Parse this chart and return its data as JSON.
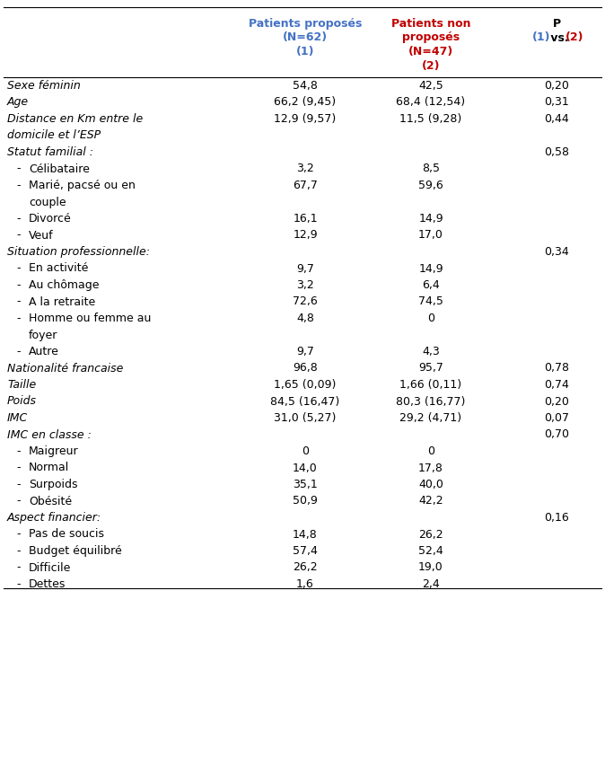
{
  "col1_header": [
    "Patients proposés",
    "(N=62)",
    "(1)"
  ],
  "col2_header": [
    "Patients non",
    "proposés",
    "(N=47)",
    "(2)"
  ],
  "col3_header_p": "P",
  "col3_header_12": [
    "(1)",
    " vs. ",
    "(2)"
  ],
  "col1_color": "#4472C4",
  "col2_color": "#C00000",
  "rows": [
    {
      "label": "Sexe féminin",
      "indent": 0,
      "italic": true,
      "col1": "54,8",
      "col2": "42,5",
      "col3": "0,20"
    },
    {
      "label": "Age",
      "indent": 0,
      "italic": true,
      "col1": "66,2 (9,45)",
      "col2": "68,4 (12,54)",
      "col3": "0,31"
    },
    {
      "label": "Distance en Km entre le",
      "indent": 0,
      "italic": true,
      "col1": "12,9 (9,57)",
      "col2": "11,5 (9,28)",
      "col3": "0,44"
    },
    {
      "label": "domicile et l’ESP",
      "indent": 0,
      "italic": true,
      "col1": "",
      "col2": "",
      "col3": ""
    },
    {
      "label": "Statut familial :",
      "indent": 0,
      "italic": true,
      "col1": "",
      "col2": "",
      "col3": "0,58"
    },
    {
      "label": "Célibataire",
      "indent": 1,
      "italic": false,
      "col1": "3,2",
      "col2": "8,5",
      "col3": ""
    },
    {
      "label": "Marié, pacsé ou en",
      "indent": 1,
      "italic": false,
      "col1": "67,7",
      "col2": "59,6",
      "col3": ""
    },
    {
      "label": "couple",
      "indent": 2,
      "italic": false,
      "col1": "",
      "col2": "",
      "col3": ""
    },
    {
      "label": "Divorcé",
      "indent": 1,
      "italic": false,
      "col1": "16,1",
      "col2": "14,9",
      "col3": ""
    },
    {
      "label": "Veuf",
      "indent": 1,
      "italic": false,
      "col1": "12,9",
      "col2": "17,0",
      "col3": ""
    },
    {
      "label": "Situation professionnelle:",
      "indent": 0,
      "italic": true,
      "col1": "",
      "col2": "",
      "col3": "0,34"
    },
    {
      "label": "En activité",
      "indent": 1,
      "italic": false,
      "col1": "9,7",
      "col2": "14,9",
      "col3": ""
    },
    {
      "label": "Au chômage",
      "indent": 1,
      "italic": false,
      "col1": "3,2",
      "col2": "6,4",
      "col3": ""
    },
    {
      "label": "A la retraite",
      "indent": 1,
      "italic": false,
      "col1": "72,6",
      "col2": "74,5",
      "col3": ""
    },
    {
      "label": "Homme ou femme au",
      "indent": 1,
      "italic": false,
      "col1": "4,8",
      "col2": "0",
      "col3": ""
    },
    {
      "label": "foyer",
      "indent": 2,
      "italic": false,
      "col1": "",
      "col2": "",
      "col3": ""
    },
    {
      "label": "Autre",
      "indent": 1,
      "italic": false,
      "col1": "9,7",
      "col2": "4,3",
      "col3": ""
    },
    {
      "label": "Nationalité francaise",
      "indent": 0,
      "italic": true,
      "col1": "96,8",
      "col2": "95,7",
      "col3": "0,78"
    },
    {
      "label": "Taille",
      "indent": 0,
      "italic": true,
      "col1": "1,65 (0,09)",
      "col2": "1,66 (0,11)",
      "col3": "0,74"
    },
    {
      "label": "Poids",
      "indent": 0,
      "italic": true,
      "col1": "84,5 (16,47)",
      "col2": "80,3 (16,77)",
      "col3": "0,20"
    },
    {
      "label": "IMC",
      "indent": 0,
      "italic": true,
      "col1": "31,0 (5,27)",
      "col2": "29,2 (4,71)",
      "col3": "0,07"
    },
    {
      "label": "IMC en classe :",
      "indent": 0,
      "italic": true,
      "col1": "",
      "col2": "",
      "col3": "0,70"
    },
    {
      "label": "Maigreur",
      "indent": 1,
      "italic": false,
      "col1": "0",
      "col2": "0",
      "col3": ""
    },
    {
      "label": "Normal",
      "indent": 1,
      "italic": false,
      "col1": "14,0",
      "col2": "17,8",
      "col3": ""
    },
    {
      "label": "Surpoids",
      "indent": 1,
      "italic": false,
      "col1": "35,1",
      "col2": "40,0",
      "col3": ""
    },
    {
      "label": "Obésité",
      "indent": 1,
      "italic": false,
      "col1": "50,9",
      "col2": "42,2",
      "col3": ""
    },
    {
      "label": "Aspect financier:",
      "indent": 0,
      "italic": true,
      "col1": "",
      "col2": "",
      "col3": "0,16"
    },
    {
      "label": "Pas de soucis",
      "indent": 1,
      "italic": false,
      "col1": "14,8",
      "col2": "26,2",
      "col3": ""
    },
    {
      "label": "Budget équilibré",
      "indent": 1,
      "italic": false,
      "col1": "57,4",
      "col2": "52,4",
      "col3": ""
    },
    {
      "label": "Difficile",
      "indent": 1,
      "italic": false,
      "col1": "26,2",
      "col2": "19,0",
      "col3": ""
    },
    {
      "label": "Dettes",
      "indent": 1,
      "italic": false,
      "col1": "1,6",
      "col2": "2,4",
      "col3": ""
    }
  ],
  "bg_color": "#FFFFFF",
  "border_color": "#000000",
  "text_color": "#000000",
  "font_size": 9.0,
  "figsize": [
    6.74,
    8.44
  ]
}
